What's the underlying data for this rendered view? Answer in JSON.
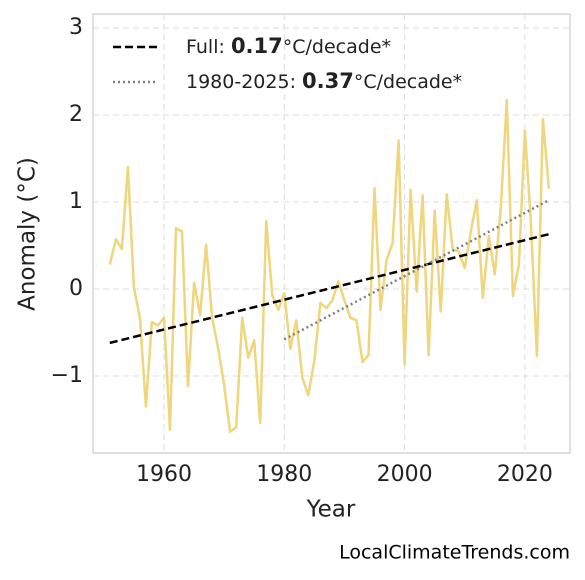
{
  "chart_data": {
    "type": "line",
    "x": [
      1951,
      1952,
      1953,
      1954,
      1955,
      1956,
      1957,
      1958,
      1959,
      1960,
      1961,
      1962,
      1963,
      1964,
      1965,
      1966,
      1967,
      1968,
      1969,
      1970,
      1971,
      1972,
      1973,
      1974,
      1975,
      1976,
      1977,
      1978,
      1979,
      1980,
      1981,
      1982,
      1983,
      1984,
      1985,
      1986,
      1987,
      1988,
      1989,
      1990,
      1991,
      1992,
      1993,
      1994,
      1995,
      1996,
      1997,
      1998,
      1999,
      2000,
      2001,
      2002,
      2003,
      2004,
      2005,
      2006,
      2007,
      2008,
      2009,
      2010,
      2011,
      2012,
      2013,
      2014,
      2015,
      2016,
      2017,
      2018,
      2019,
      2020,
      2021,
      2022,
      2023,
      2024
    ],
    "series": [
      {
        "color": "#efd67c",
        "values": [
          0.28,
          0.57,
          0.46,
          1.4,
          0.02,
          -0.33,
          -1.35,
          -0.38,
          -0.42,
          -0.33,
          -1.62,
          0.7,
          0.66,
          -1.12,
          0.07,
          -0.3,
          0.51,
          -0.33,
          -0.68,
          -1.1,
          -1.64,
          -1.59,
          -0.33,
          -0.79,
          -0.59,
          -1.54,
          0.78,
          -0.07,
          -0.24,
          -0.05,
          -0.69,
          -0.36,
          -1.02,
          -1.22,
          -0.82,
          -0.16,
          -0.22,
          -0.13,
          0.09,
          -0.13,
          -0.33,
          -0.36,
          -0.84,
          -0.76,
          1.16,
          -0.24,
          0.33,
          0.53,
          1.71,
          -0.87,
          1.14,
          -0.03,
          1.08,
          -0.76,
          0.9,
          -0.26,
          1.09,
          0.46,
          0.43,
          0.24,
          0.66,
          1.02,
          -0.1,
          0.61,
          0.17,
          0.93,
          2.17,
          -0.08,
          0.28,
          1.82,
          0.76,
          -0.77,
          1.95,
          1.15
        ]
      }
    ],
    "trends": [
      {
        "name": [
          "Full: ",
          "0.17",
          "°C/decade*"
        ],
        "color": "#000000",
        "style": "dashed",
        "x": [
          1951,
          2024
        ],
        "values": [
          -0.62,
          0.63
        ]
      },
      {
        "name": [
          "1980-2025: ",
          "0.37",
          "°C/decade*"
        ],
        "color": "#808080",
        "style": "dotted",
        "x": [
          1980,
          2024
        ],
        "values": [
          -0.58,
          1.02
        ]
      }
    ],
    "xlabel": "Year",
    "ylabel": "Anomaly (°C)",
    "xlim": [
      1948.2,
      2027.5
    ],
    "ylim": [
      -1.885,
      3.16
    ],
    "xticks": [
      1960,
      1980,
      2000,
      2020
    ],
    "yticks": [
      {
        "value": -1,
        "label": "−1"
      },
      0,
      1,
      2,
      3
    ],
    "grid": true,
    "legend": "upper left",
    "source": "LocalClimateTrends.com"
  }
}
